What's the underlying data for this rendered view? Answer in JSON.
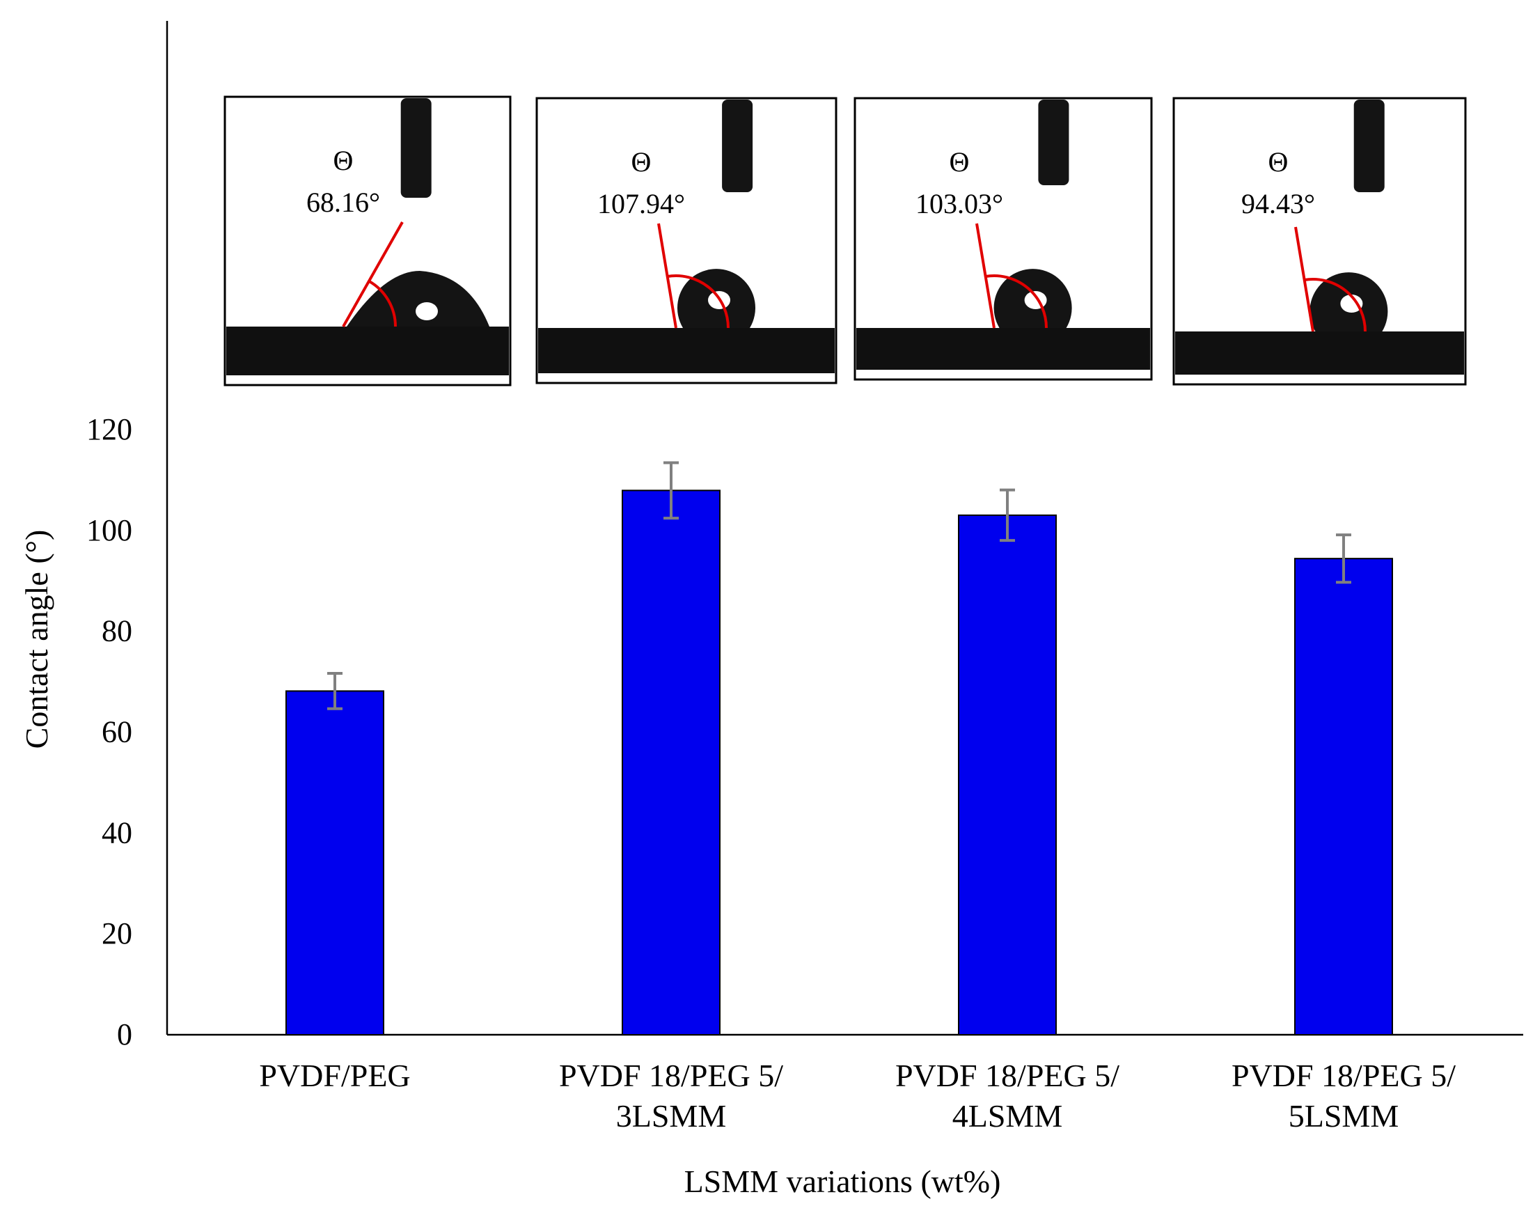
{
  "chart_data": {
    "type": "bar",
    "title": "",
    "xlabel": "LSMM variations (wt%)",
    "ylabel": "Contact angle (°)",
    "ylim": [
      0,
      120
    ],
    "yticks": [
      "0",
      "20",
      "40",
      "60",
      "80",
      "100",
      "120"
    ],
    "grid": false,
    "categories": [
      [
        "PVDF/PEG"
      ],
      [
        "PVDF 18/PEG 5/",
        "3LSMM"
      ],
      [
        "PVDF 18/PEG 5/",
        "4LSMM"
      ],
      [
        "PVDF 18/PEG 5/",
        "5LSMM"
      ]
    ],
    "values": [
      68.16,
      107.94,
      103.03,
      94.43
    ],
    "errors": [
      3.5,
      5.5,
      5.0,
      4.7
    ],
    "bar_color": "#0000ee",
    "error_color": "#808080",
    "insets": [
      {
        "symbol": "Θ",
        "angle_label": "68.16°"
      },
      {
        "symbol": "Θ",
        "angle_label": "107.94°"
      },
      {
        "symbol": "Θ",
        "angle_label": "103.03°"
      },
      {
        "symbol": "Θ",
        "angle_label": "94.43°"
      }
    ]
  }
}
